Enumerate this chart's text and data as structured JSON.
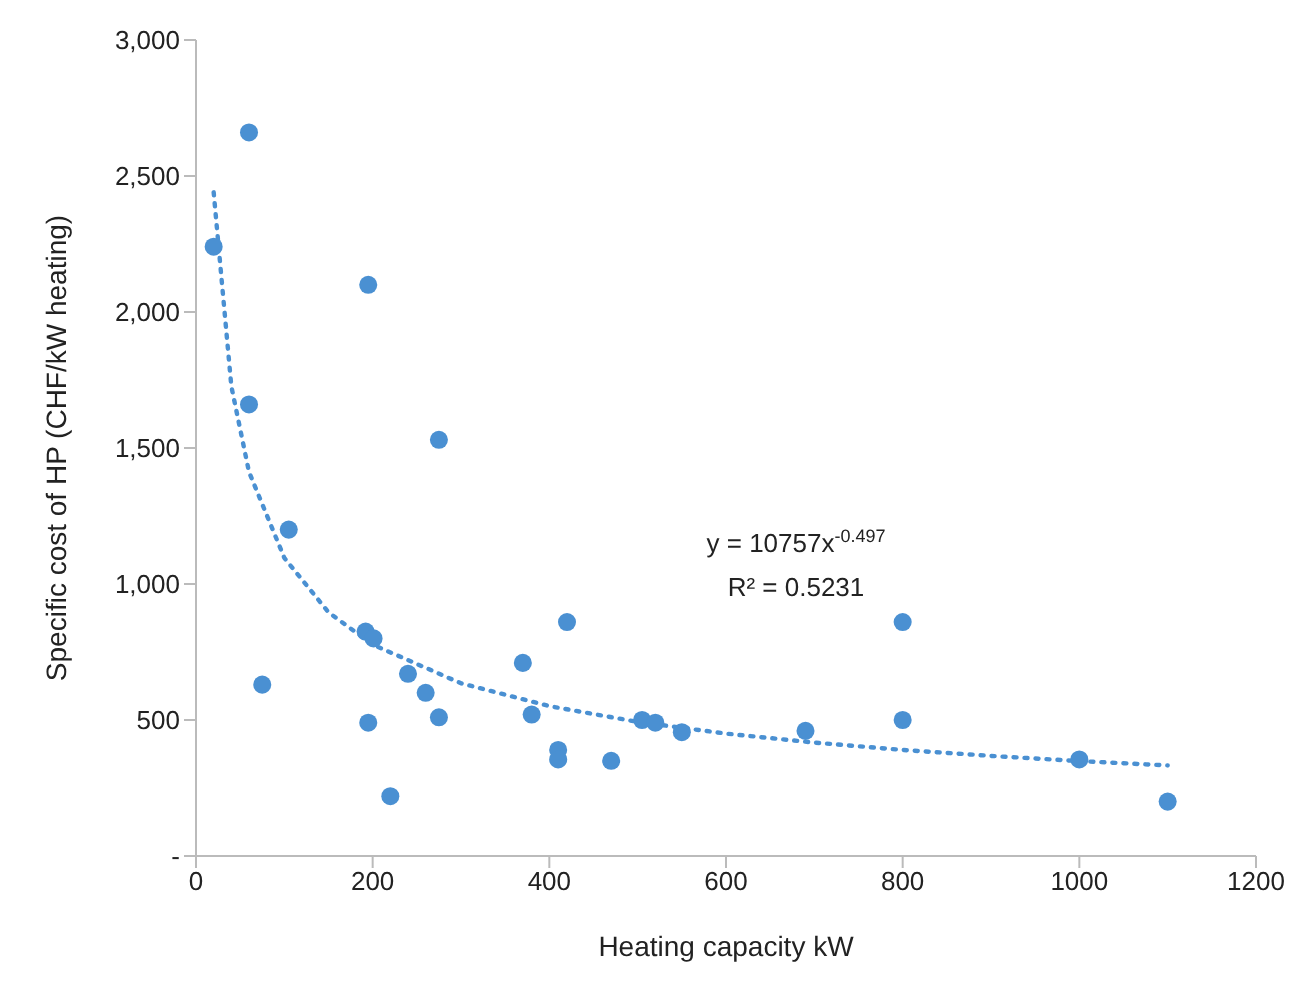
{
  "chart_data": {
    "type": "scatter",
    "xlabel": "Heating capacity kW",
    "ylabel": "Specific cost of HP (CHF/kW heating)",
    "xlim": [
      0,
      1200
    ],
    "xticks": [
      0,
      200,
      400,
      600,
      800,
      1000,
      1200
    ],
    "ylim": [
      0,
      3000
    ],
    "yticks": [
      {
        "value": 0,
        "label": "-"
      },
      {
        "value": 500,
        "label": "500"
      },
      {
        "value": 1000,
        "label": "1,000"
      },
      {
        "value": 1500,
        "label": "1,500"
      },
      {
        "value": 2000,
        "label": "2,000"
      },
      {
        "value": 2500,
        "label": "2,500"
      },
      {
        "value": 3000,
        "label": "3,000"
      }
    ],
    "grid": false,
    "legend": false,
    "marker": "circle",
    "annotations": [
      "y = 10757x$^{-0.497}$",
      "R² = 0.5231"
    ],
    "series": [
      {
        "color": "#4a90d2",
        "x": [
          20,
          60,
          60,
          75,
          105,
          195,
          192,
          201,
          195,
          220,
          240,
          260,
          275,
          275,
          370,
          380,
          410,
          410,
          420,
          470,
          505,
          520,
          550,
          690,
          800,
          800,
          1000,
          1100
        ],
        "values": [
          2240,
          2660,
          1660,
          630,
          1200,
          2100,
          825,
          800,
          490,
          220,
          670,
          600,
          1530,
          510,
          710,
          520,
          390,
          355,
          860,
          350,
          500,
          490,
          455,
          460,
          860,
          500,
          355,
          200
        ]
      },
      {
        "type": "line",
        "color": "#4a90d2",
        "line_style": "dotted",
        "marker": "none",
        "x": [
          20,
          40,
          60,
          100,
          150,
          200,
          300,
          400,
          500,
          600,
          700,
          800,
          900,
          1000,
          1100
        ],
        "values": [
          2440,
          1727,
          1412,
          1096,
          896,
          777,
          635,
          551,
          493,
          450,
          417,
          390,
          368,
          349,
          333
        ]
      }
    ]
  }
}
